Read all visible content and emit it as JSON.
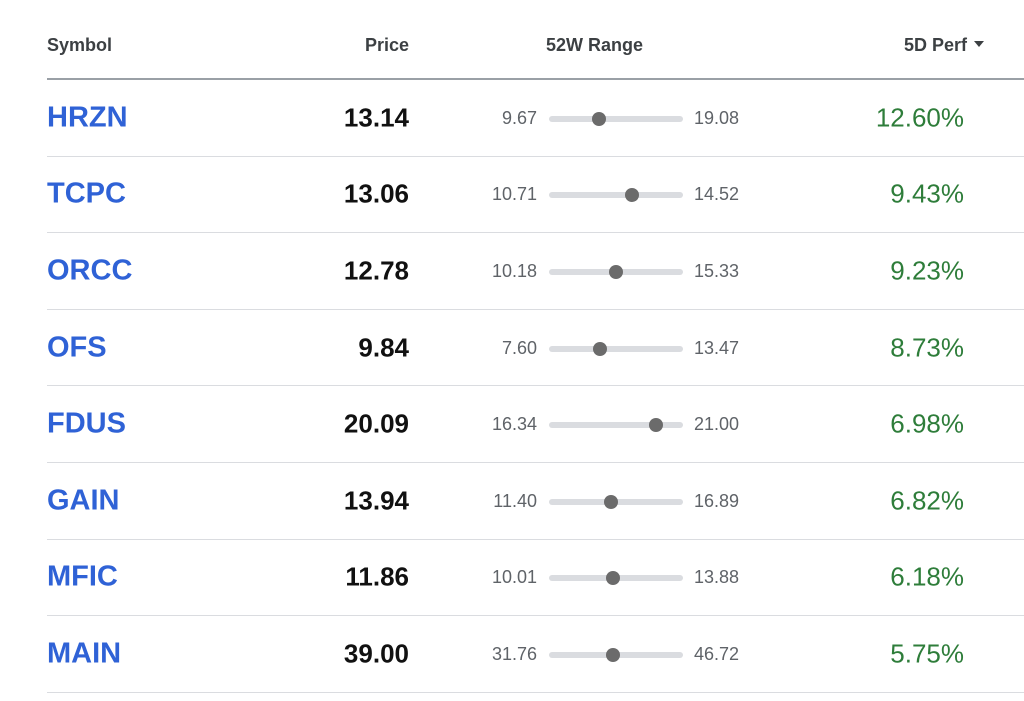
{
  "header": {
    "symbol": "Symbol",
    "price": "Price",
    "range": "52W Range",
    "perf": "5D Perf"
  },
  "colors": {
    "symbol_link": "#2f62d6",
    "positive": "#2e7d3a",
    "marker": "#6b6b6b",
    "track": "#dadce0"
  },
  "rows": [
    {
      "symbol": "HRZN",
      "price": "13.14",
      "low": "9.67",
      "high": "19.08",
      "perf": "12.60%",
      "position": 0.37
    },
    {
      "symbol": "TCPC",
      "price": "13.06",
      "low": "10.71",
      "high": "14.52",
      "perf": "9.43%",
      "position": 0.62
    },
    {
      "symbol": "ORCC",
      "price": "12.78",
      "low": "10.18",
      "high": "15.33",
      "perf": "9.23%",
      "position": 0.5
    },
    {
      "symbol": "OFS",
      "price": "9.84",
      "low": "7.60",
      "high": "13.47",
      "perf": "8.73%",
      "position": 0.38
    },
    {
      "symbol": "FDUS",
      "price": "20.09",
      "low": "16.34",
      "high": "21.00",
      "perf": "6.98%",
      "position": 0.8
    },
    {
      "symbol": "GAIN",
      "price": "13.94",
      "low": "11.40",
      "high": "16.89",
      "perf": "6.82%",
      "position": 0.46
    },
    {
      "symbol": "MFIC",
      "price": "11.86",
      "low": "10.01",
      "high": "13.88",
      "perf": "6.18%",
      "position": 0.48
    },
    {
      "symbol": "MAIN",
      "price": "39.00",
      "low": "31.76",
      "high": "46.72",
      "perf": "5.75%",
      "position": 0.48
    }
  ]
}
